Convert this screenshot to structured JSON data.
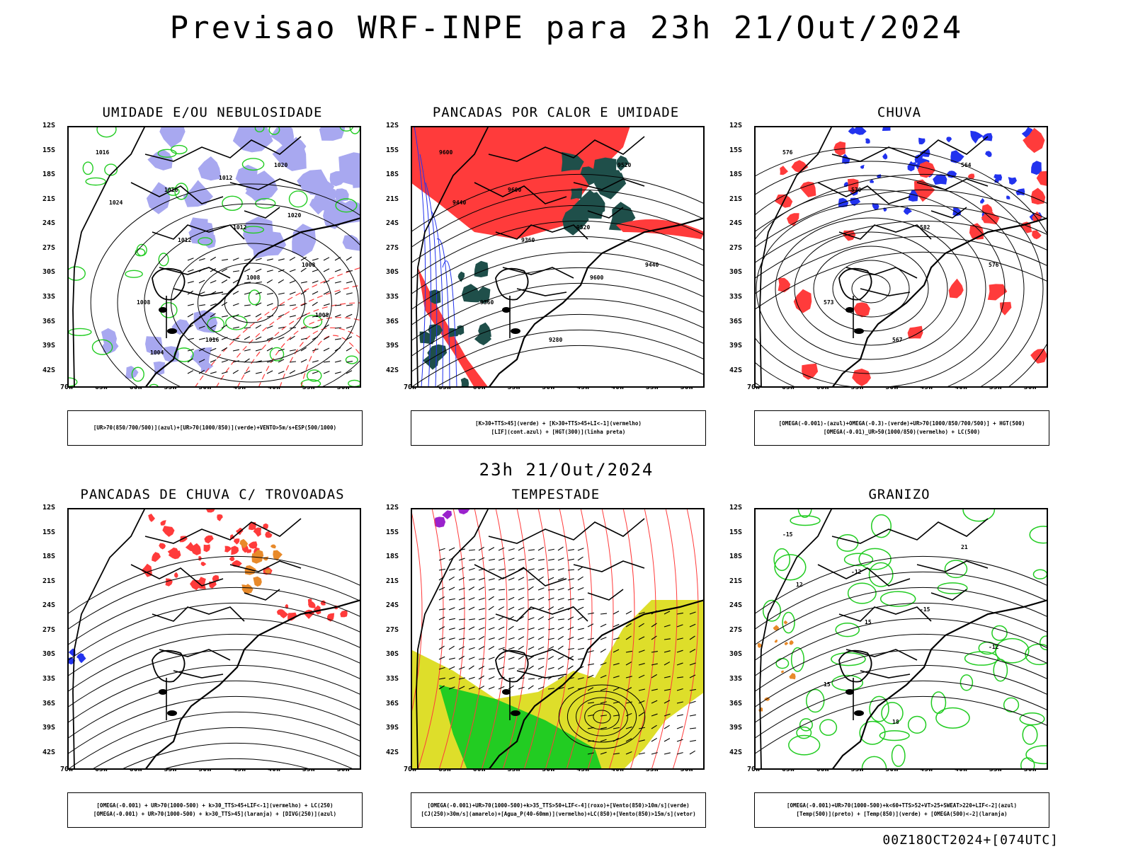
{
  "title": "Previsao WRF-INPE  para 23h 21/Out/2024",
  "subtitle": "23h 21/Out/2024",
  "footer": "00Z18OCT2024+[074UTC]",
  "axes": {
    "lat_labels": [
      "12S",
      "15S",
      "18S",
      "21S",
      "24S",
      "27S",
      "30S",
      "33S",
      "36S",
      "39S",
      "42S"
    ],
    "lon_labels": [
      "70W",
      "65W",
      "60W",
      "55W",
      "50W",
      "45W",
      "40W",
      "35W",
      "30W"
    ]
  },
  "panels": [
    {
      "id": "umidade",
      "title": "UMIDADE E/OU NEBULOSIDADE",
      "legend": [
        "[UR>70(850/700/500)](azul)+[UR>70(1000/850)](verde)+VENTO>5m/s+ESP(500/1000)"
      ],
      "contour_labels": [
        "1016",
        "1016",
        "1012",
        "1008",
        "1008",
        "1016",
        "1020",
        "1024",
        "1012",
        "1008",
        "1008",
        "1004",
        "1012",
        "1020"
      ]
    },
    {
      "id": "pancadas-calor",
      "title": "PANCADAS POR CALOR E UMIDADE",
      "legend": [
        "[K>30+TTS>45](verde) + [K>30+TTS>45+LI<-1](vermelho)",
        "[LIF](cont.azul) + [HGT(300)](linha preta)"
      ],
      "contour_labels": [
        "9600",
        "9600",
        "9520",
        "9440",
        "9360",
        "9280",
        "9520",
        "9440",
        "9360",
        "9600"
      ]
    },
    {
      "id": "chuva",
      "title": "CHUVA",
      "legend": [
        "[OMEGA(-0.001)-(azul)+OMEGA(-0.3)-(verde)+UR>70(1000/850/700/500)] + HGT(500)",
        "[OMEGA(-0.01)_UR>50(1000/850)(vermelho) + LC(500)"
      ],
      "contour_labels": [
        "576",
        "570",
        "582",
        "576",
        "573",
        "567",
        "564"
      ]
    },
    {
      "id": "pancadas-trovoadas",
      "title": "PANCADAS DE CHUVA C/ TROVOADAS",
      "legend": [
        "[OMEGA(-0.001) + UR>70(1000-500) + k>30_TTS>45+LIF<-1](vermelho) + LC(250)",
        "[OMEGA(-0.001) + UR>70(1000-500) + k>30_TTS>45](laranja) + [DIVG(250)](azul)"
      ],
      "contour_labels": []
    },
    {
      "id": "tempestade",
      "title": "TEMPESTADE",
      "legend": [
        "[OMEGA(-0.001)+UR>70(1000-500)+k>35_TTS>50+LIF<-4](roxo)+[Vento(850)>10m/s](verde)",
        "[CJ(250)>30m/s](amarelo)+[Agua_P(40-60mm)](vermelho)+LC(850)+[Vento(850)>15m/s](vetor)"
      ],
      "contour_labels": []
    },
    {
      "id": "granizo",
      "title": "GRANIZO",
      "legend": [
        "[OMEGA(-0.001)+UR>70(1000-500)+k<60+TTS>52+VT>25+SWEAT>220+LIF<-2](azul)",
        "[Temp(500)](preto) + [Temp(850)](verde) + [OMEGA(500)<-2](laranja)"
      ],
      "contour_labels": [
        "-15",
        "-12",
        "-15",
        "-12",
        "15",
        "18",
        "21",
        "12",
        "15"
      ]
    }
  ],
  "colors": {
    "blue_shade": "#a8a8f0",
    "green": "#22cc22",
    "red": "#ff3b3b",
    "dark_green": "#1f4f4a",
    "blue": "#2233ee",
    "yellow": "#dede2a",
    "orange": "#e88a2a",
    "purple": "#9a22cc"
  }
}
